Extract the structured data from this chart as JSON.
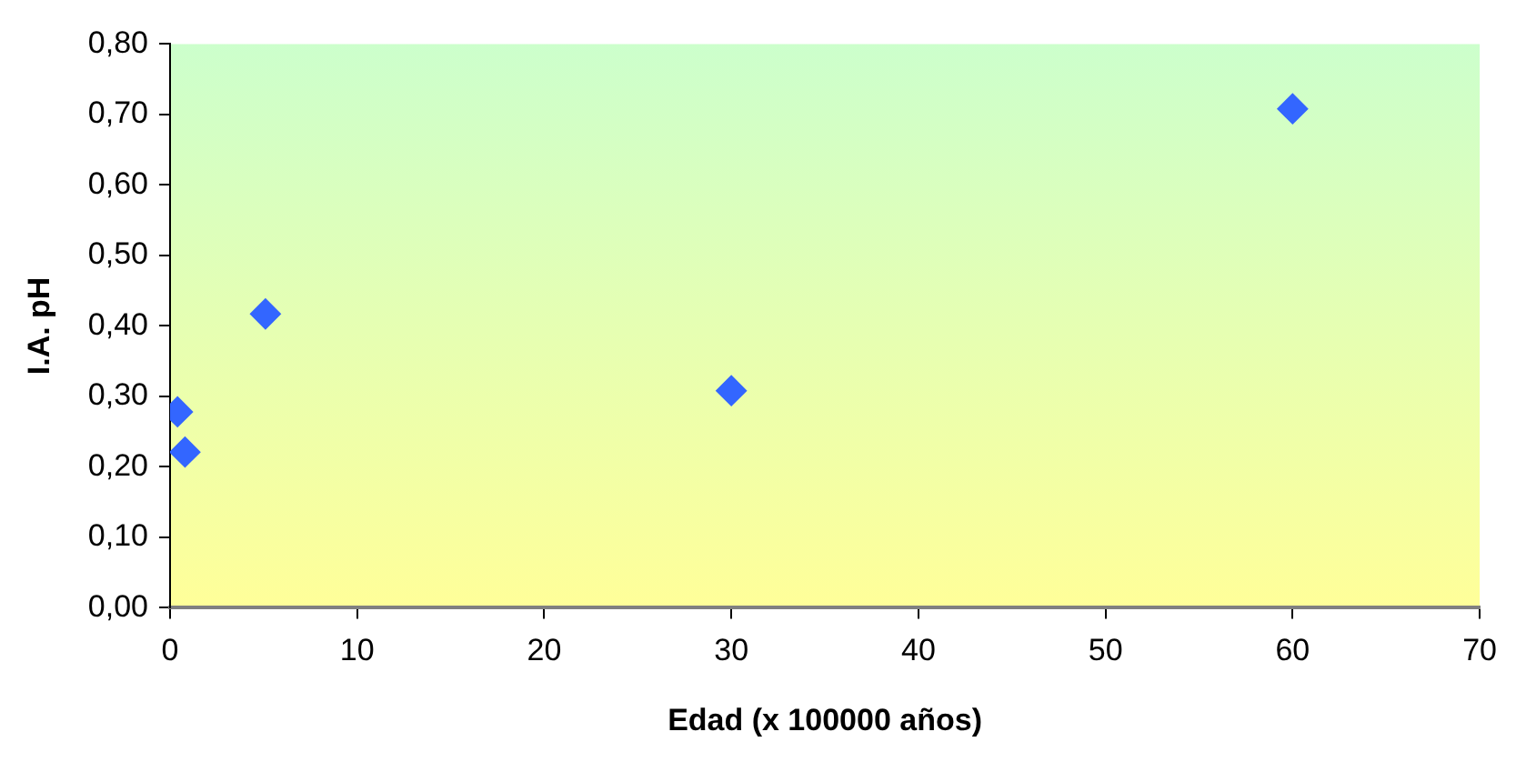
{
  "chart_data": {
    "type": "scatter",
    "xlabel": "Edad (x 100000 años)",
    "ylabel": "I.A. pH",
    "x": [
      0.4,
      0.8,
      5.1,
      30,
      60
    ],
    "series": [
      {
        "color": "#3366ff",
        "values": [
          0.278,
          0.221,
          0.417,
          0.308,
          0.708
        ]
      }
    ],
    "marker": "diamond",
    "grid": false,
    "legend": false,
    "xlim": [
      0,
      70
    ],
    "xticks": [
      0,
      10,
      20,
      30,
      40,
      50,
      60,
      70
    ],
    "ylim": [
      0,
      0.8
    ],
    "yticks": [
      {
        "value": 0,
        "label": "0,00"
      },
      {
        "value": 0.1,
        "label": "0,10"
      },
      {
        "value": 0.2,
        "label": "0,20"
      },
      {
        "value": 0.3,
        "label": "0,30"
      },
      {
        "value": 0.4,
        "label": "0,40"
      },
      {
        "value": 0.5,
        "label": "0,50"
      },
      {
        "value": 0.6,
        "label": "0,60"
      },
      {
        "value": 0.7,
        "label": "0,70"
      },
      {
        "value": 0.8,
        "label": "0,80"
      }
    ]
  }
}
